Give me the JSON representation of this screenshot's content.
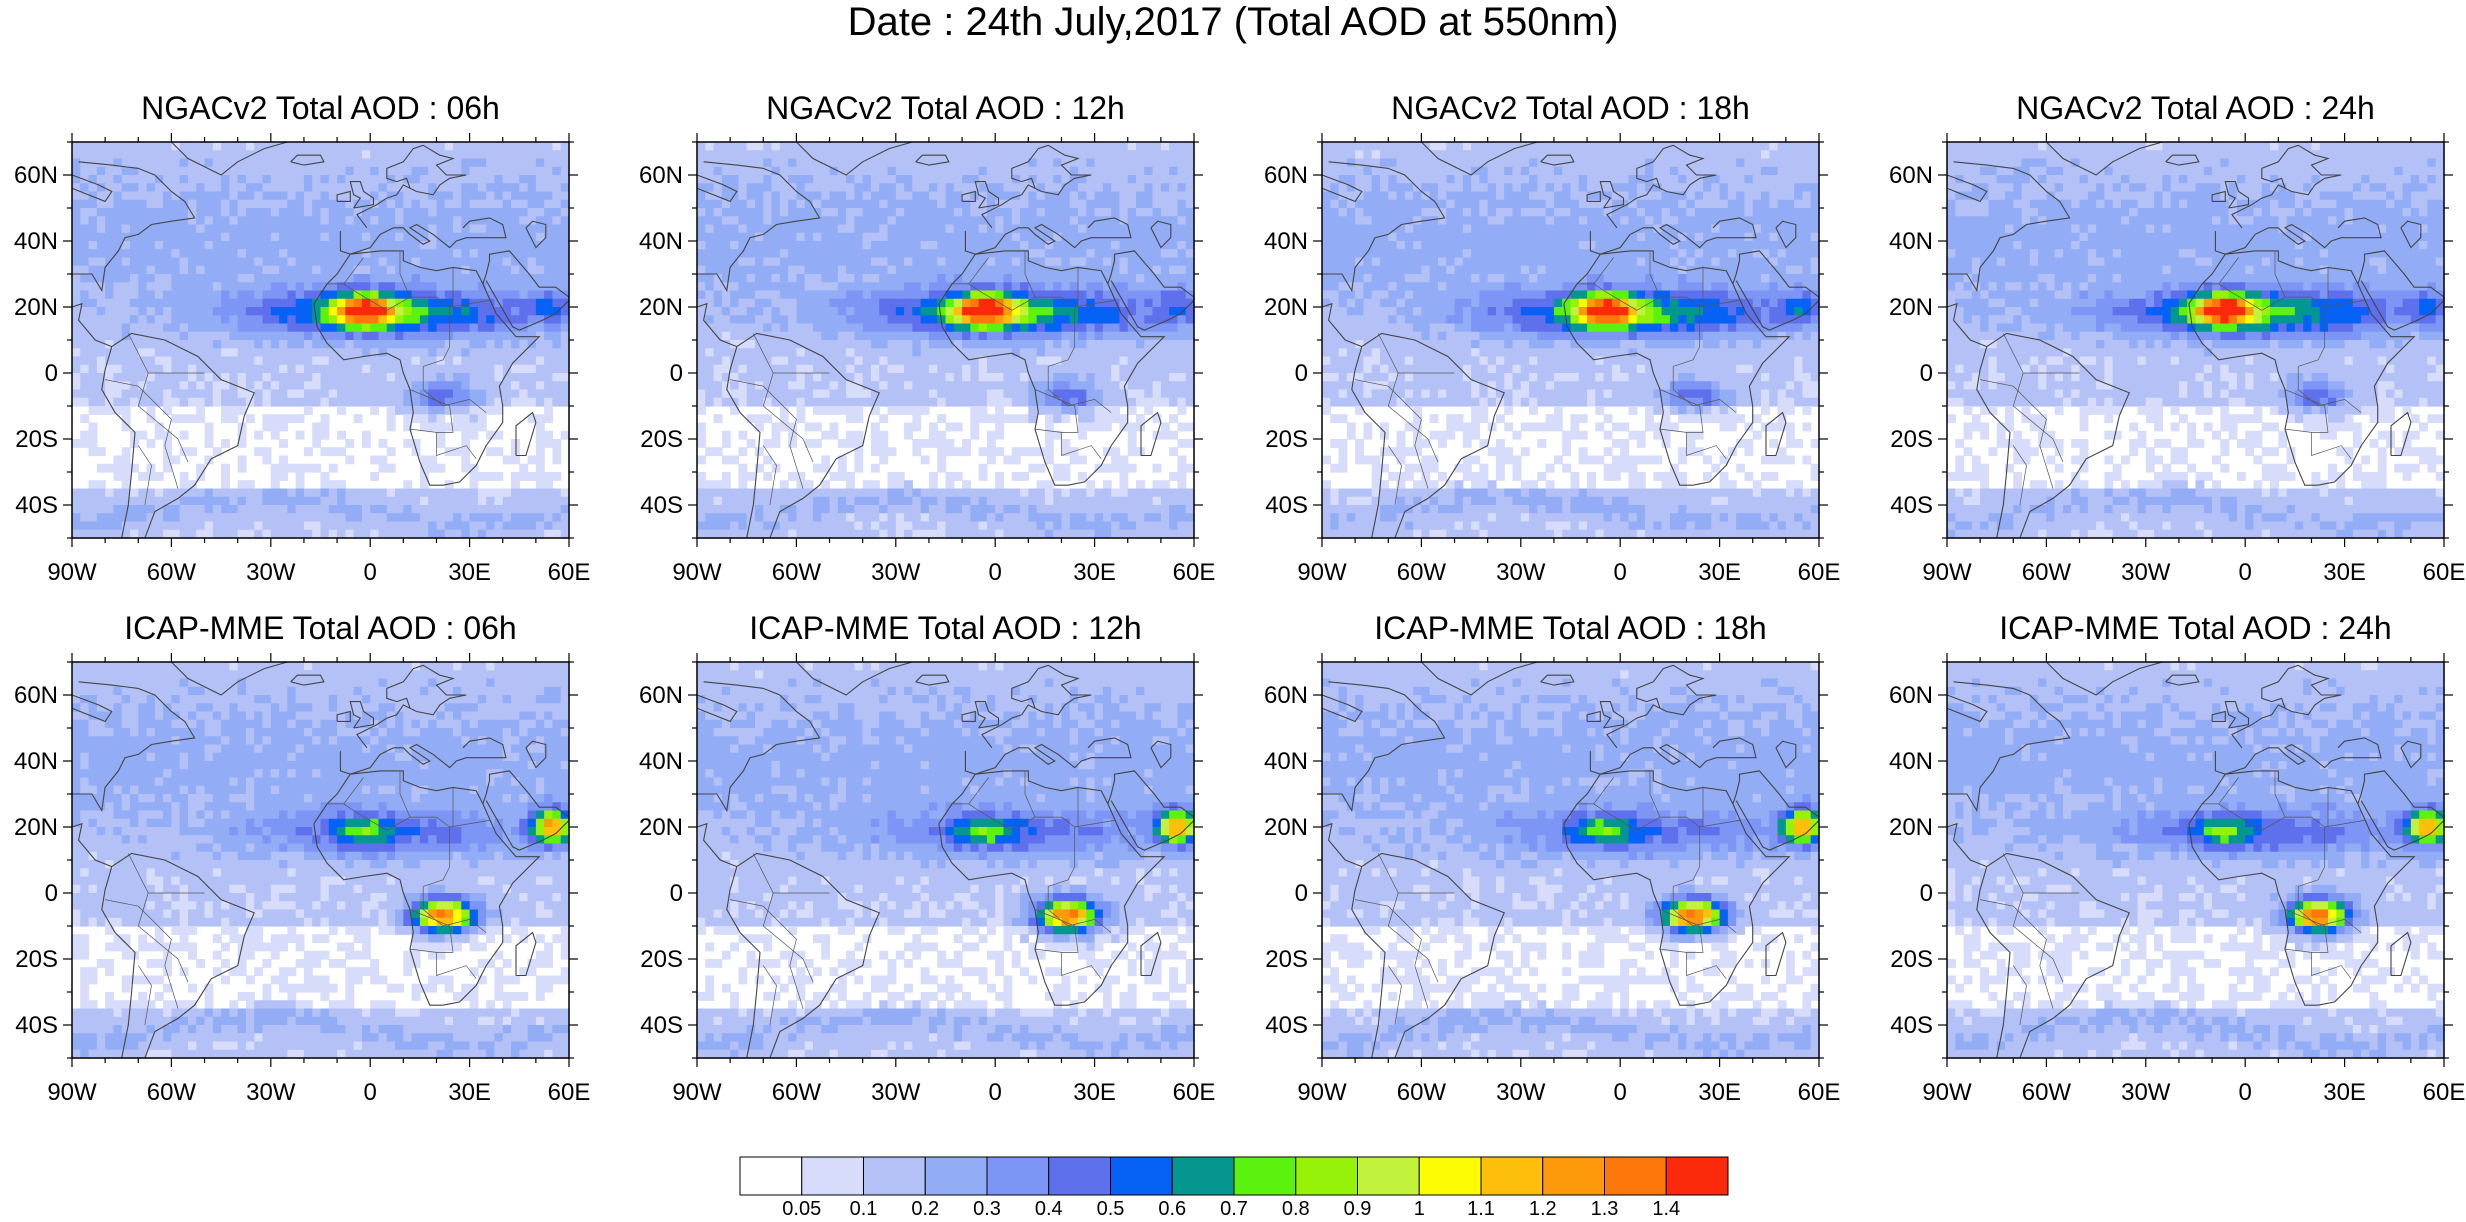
{
  "title": "Date : 24th July,2017 (Total AOD at 550nm)",
  "panels": [
    {
      "title": "NGACv2 Total AOD : 06h"
    },
    {
      "title": "NGACv2 Total AOD : 12h"
    },
    {
      "title": "NGACv2 Total AOD : 18h"
    },
    {
      "title": "NGACv2 Total AOD : 24h"
    },
    {
      "title": "ICAP-MME Total AOD : 06h"
    },
    {
      "title": "ICAP-MME Total AOD : 12h"
    },
    {
      "title": "ICAP-MME Total AOD : 18h"
    },
    {
      "title": "ICAP-MME Total AOD : 24h"
    }
  ],
  "axes": {
    "lat_labels": [
      "60N",
      "40N",
      "20N",
      "0",
      "20S",
      "40S"
    ],
    "lon_labels": [
      "90W",
      "60W",
      "30W",
      "0",
      "30E",
      "60E"
    ]
  },
  "colorbar": {
    "levels": [
      "0.05",
      "0.1",
      "0.2",
      "0.3",
      "0.4",
      "0.5",
      "0.6",
      "0.7",
      "0.8",
      "0.9",
      "1",
      "1.1",
      "1.2",
      "1.3",
      "1.4"
    ],
    "colors": [
      "#ffffff",
      "#d6dcfa",
      "#b4c1f7",
      "#93acf6",
      "#7d95f4",
      "#5f70ec",
      "#0562f4",
      "#05978f",
      "#5cf20f",
      "#97f20a",
      "#c3f23d",
      "#fdfc05",
      "#fdbf0b",
      "#fd9a0b",
      "#fd780b",
      "#fc290b"
    ]
  }
}
